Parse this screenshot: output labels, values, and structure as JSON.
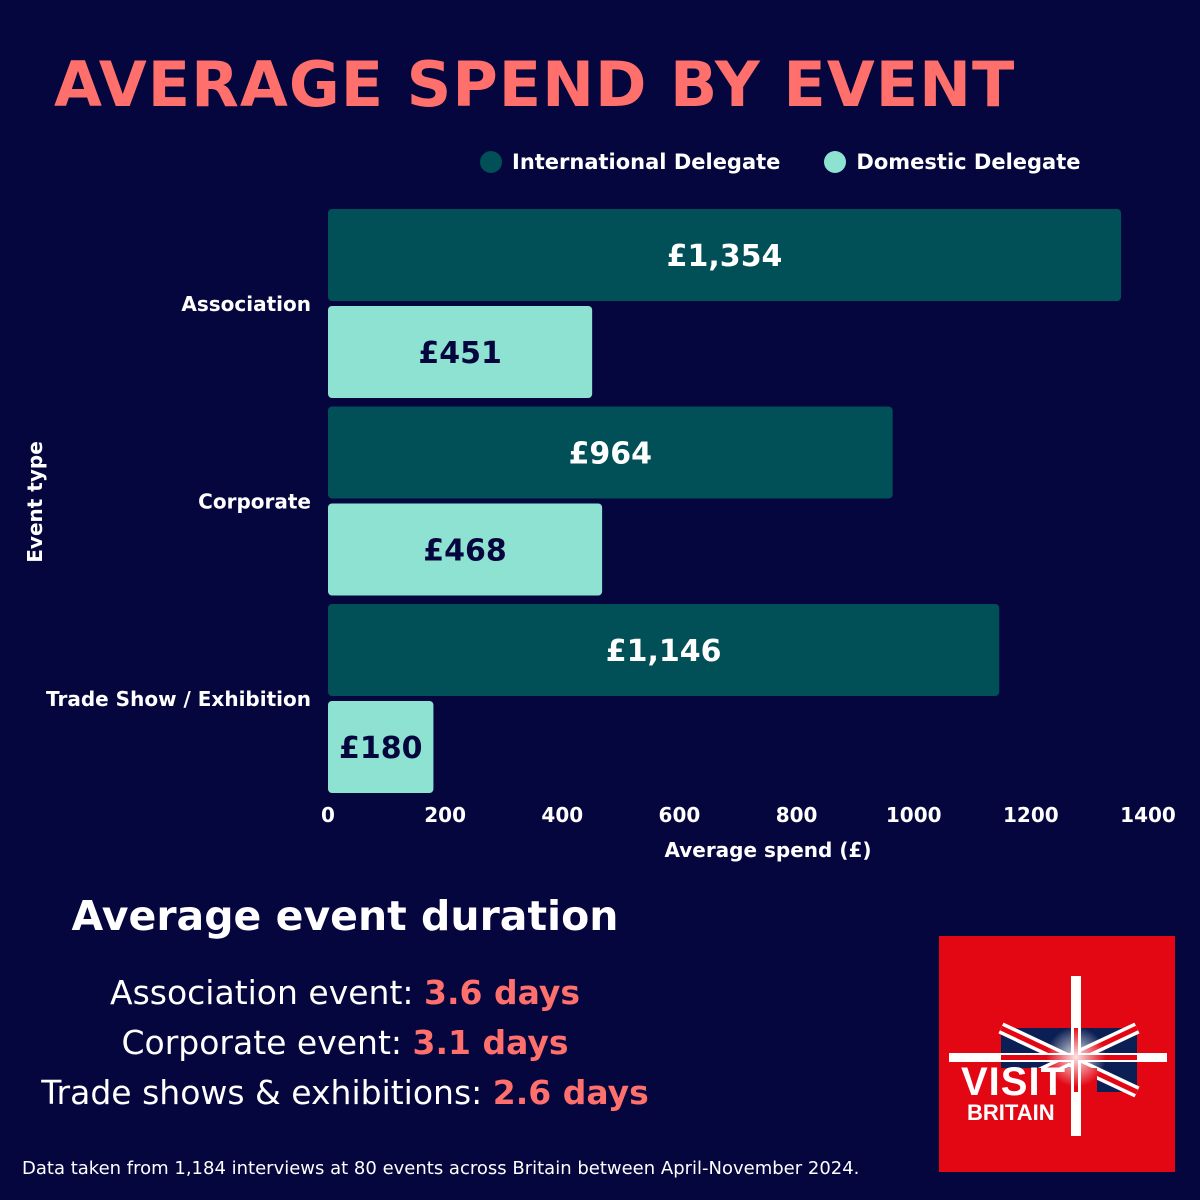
{
  "title": "AVERAGE SPEND BY EVENT",
  "colors": {
    "background": "#06063f",
    "accent": "#ff6f6b",
    "international": "#014f57",
    "domestic": "#8de2d1",
    "logo_red": "#e30613"
  },
  "chart_data": {
    "type": "bar",
    "orientation": "horizontal",
    "categories": [
      "Association",
      "Corporate",
      "Trade Show / Exhibition"
    ],
    "series": [
      {
        "name": "International Delegate",
        "values": [
          1354,
          964,
          1146
        ],
        "labels": [
          "£1,354",
          "£964",
          "£1,146"
        ]
      },
      {
        "name": "Domestic Delegate",
        "values": [
          451,
          468,
          180
        ],
        "labels": [
          "£451",
          "£468",
          "£180"
        ]
      }
    ],
    "xlabel": "Average spend (£)",
    "ylabel": "Event type",
    "xlim": [
      0,
      1400
    ],
    "xticks": [
      "0",
      "200",
      "400",
      "600",
      "800",
      "1000",
      "1200",
      "1400"
    ],
    "legend_position": "top",
    "grid": false
  },
  "duration": {
    "title": "Average event duration",
    "items": [
      {
        "label": "Association event: ",
        "value": "3.6 days"
      },
      {
        "label": "Corporate event: ",
        "value": "3.1 days"
      },
      {
        "label": "Trade shows & exhibitions: ",
        "value": "2.6 days"
      }
    ]
  },
  "footnote": "Data taken from 1,184 interviews at 80 events across Britain between April-November 2024.",
  "logo": {
    "line1": "VISIT",
    "line2": "BRITAIN"
  }
}
